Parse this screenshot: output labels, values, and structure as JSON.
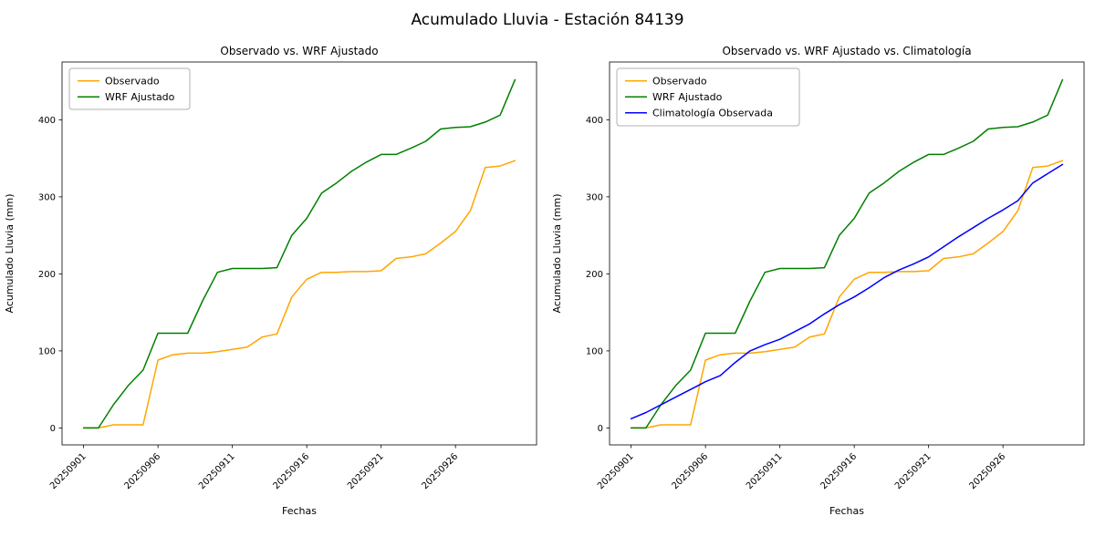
{
  "figure": {
    "title": "Acumulado Lluvia - Estación 84139",
    "background_color": "#ffffff"
  },
  "chart_data": [
    {
      "type": "line",
      "title": "Observado vs. WRF Ajustado",
      "xlabel": "Fechas",
      "ylabel": "Acumulado Lluvia (mm)",
      "grid": false,
      "legend_position": "upper left",
      "x": [
        "20250901",
        "20250902",
        "20250903",
        "20250904",
        "20250905",
        "20250906",
        "20250907",
        "20250908",
        "20250909",
        "20250910",
        "20250911",
        "20250912",
        "20250913",
        "20250914",
        "20250915",
        "20250916",
        "20250917",
        "20250918",
        "20250919",
        "20250920",
        "20250921",
        "20250922",
        "20250923",
        "20250924",
        "20250925",
        "20250926",
        "20250927",
        "20250928",
        "20250929",
        "20250930"
      ],
      "xtick_indices": [
        0,
        5,
        10,
        15,
        20,
        25
      ],
      "xtick_labels": [
        "20250901",
        "20250906",
        "20250911",
        "20250916",
        "20250921",
        "20250926"
      ],
      "yticks": [
        0,
        100,
        200,
        300,
        400
      ],
      "ylim": [
        -22,
        475
      ],
      "series": [
        {
          "name": "Observado",
          "color": "#ffa500",
          "values": [
            0,
            0,
            4,
            4,
            4,
            88,
            95,
            97,
            97,
            99,
            102,
            105,
            118,
            122,
            170,
            193,
            202,
            202,
            203,
            203,
            204,
            220,
            222,
            226,
            240,
            255,
            282,
            338,
            340,
            347
          ]
        },
        {
          "name": "WRF Ajustado",
          "color": "#008000",
          "values": [
            0,
            0,
            30,
            55,
            75,
            123,
            123,
            123,
            165,
            202,
            207,
            207,
            207,
            208,
            250,
            272,
            305,
            318,
            333,
            345,
            355,
            355,
            363,
            372,
            388,
            390,
            391,
            397,
            406,
            452
          ]
        }
      ]
    },
    {
      "type": "line",
      "title": "Observado vs. WRF Ajustado vs. Climatología",
      "xlabel": "Fechas",
      "ylabel": "Acumulado Lluvia (mm)",
      "grid": false,
      "legend_position": "upper left",
      "x": [
        "20250901",
        "20250902",
        "20250903",
        "20250904",
        "20250905",
        "20250906",
        "20250907",
        "20250908",
        "20250909",
        "20250910",
        "20250911",
        "20250912",
        "20250913",
        "20250914",
        "20250915",
        "20250916",
        "20250917",
        "20250918",
        "20250919",
        "20250920",
        "20250921",
        "20250922",
        "20250923",
        "20250924",
        "20250925",
        "20250926",
        "20250927",
        "20250928",
        "20250929",
        "20250930"
      ],
      "xtick_indices": [
        0,
        5,
        10,
        15,
        20,
        25
      ],
      "xtick_labels": [
        "20250901",
        "20250906",
        "20250911",
        "20250916",
        "20250921",
        "20250926"
      ],
      "yticks": [
        0,
        100,
        200,
        300,
        400
      ],
      "ylim": [
        -22,
        475
      ],
      "series": [
        {
          "name": "Observado",
          "color": "#ffa500",
          "values": [
            0,
            0,
            4,
            4,
            4,
            88,
            95,
            97,
            97,
            99,
            102,
            105,
            118,
            122,
            170,
            193,
            202,
            202,
            203,
            203,
            204,
            220,
            222,
            226,
            240,
            255,
            282,
            338,
            340,
            347
          ]
        },
        {
          "name": "WRF Ajustado",
          "color": "#008000",
          "values": [
            0,
            0,
            30,
            55,
            75,
            123,
            123,
            123,
            165,
            202,
            207,
            207,
            207,
            208,
            250,
            272,
            305,
            318,
            333,
            345,
            355,
            355,
            363,
            372,
            388,
            390,
            391,
            397,
            406,
            452
          ]
        },
        {
          "name": "Climatología Observada",
          "color": "#0000ff",
          "values": [
            12,
            20,
            30,
            40,
            50,
            60,
            68,
            85,
            100,
            108,
            115,
            125,
            135,
            148,
            160,
            170,
            182,
            195,
            205,
            213,
            222,
            235,
            248,
            260,
            272,
            283,
            295,
            318,
            330,
            342
          ]
        }
      ]
    }
  ]
}
